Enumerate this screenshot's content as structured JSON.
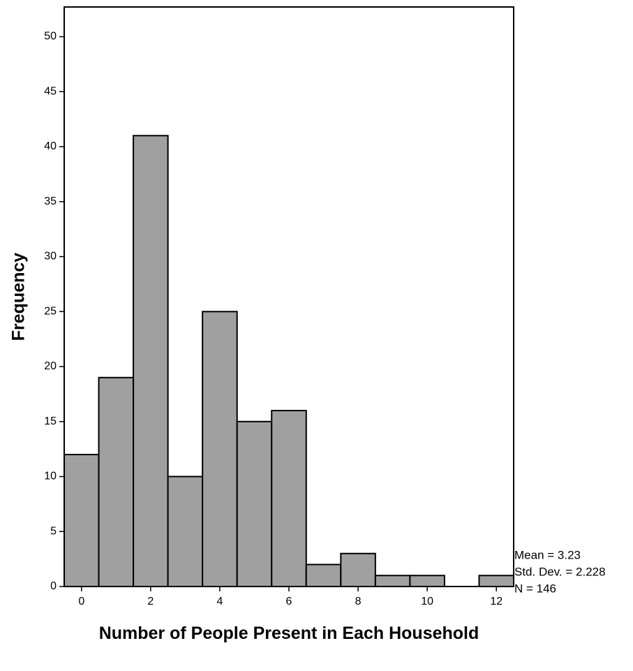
{
  "chart_data": {
    "type": "histogram",
    "xlabel": "Number of People Present in Each Household",
    "ylabel": "Frequency",
    "bins": [
      -0.5,
      0.5,
      1.5,
      2.5,
      3.5,
      4.5,
      5.5,
      6.5,
      7.5,
      8.5,
      9.5,
      10.5,
      11.5,
      12.5
    ],
    "values": [
      12,
      19,
      41,
      10,
      25,
      15,
      16,
      2,
      3,
      1,
      1,
      0,
      1
    ],
    "color": "#a0a0a0",
    "xlim": [
      -0.5,
      12.5
    ],
    "xticks": [
      0,
      2,
      4,
      6,
      8,
      10,
      12
    ],
    "ylim": [
      0,
      52.7
    ],
    "yticks": [
      0,
      5,
      10,
      15,
      20,
      25,
      30,
      35,
      40,
      45,
      50
    ],
    "annotations": [
      "Mean = 3.23",
      "Std. Dev. = 2.228",
      "N = 146"
    ]
  }
}
